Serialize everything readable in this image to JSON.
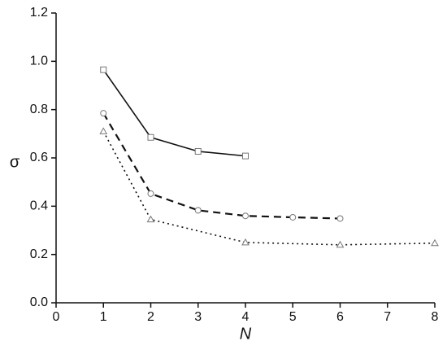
{
  "chart_data": {
    "type": "line",
    "x_label": "N",
    "y_label": "σ",
    "xlim": [
      0,
      8
    ],
    "xticks": [
      0,
      1,
      2,
      3,
      4,
      5,
      6,
      7,
      8
    ],
    "ylim": [
      0,
      1.2
    ],
    "yticks": [
      {
        "value": 0,
        "label": "0.0"
      },
      0.2,
      0.4,
      0.6,
      0.8,
      {
        "value": 1,
        "label": "1.0"
      },
      1.2
    ],
    "series": [
      {
        "color": "#111111",
        "marker": "square",
        "dash": "solid",
        "x": [
          1,
          2,
          3,
          4
        ],
        "values": [
          0.965,
          0.685,
          0.627,
          0.608
        ]
      },
      {
        "color": "#111111",
        "marker": "circle",
        "dash": "dashed",
        "x": [
          1,
          2,
          3,
          4,
          5,
          6
        ],
        "values": [
          0.785,
          0.452,
          0.383,
          0.36,
          0.354,
          0.349
        ]
      },
      {
        "color": "#111111",
        "marker": "triangle",
        "dash": "dotted",
        "x": [
          1,
          2,
          4,
          6,
          8
        ],
        "values": [
          0.71,
          0.345,
          0.25,
          0.24,
          0.247
        ]
      }
    ]
  }
}
